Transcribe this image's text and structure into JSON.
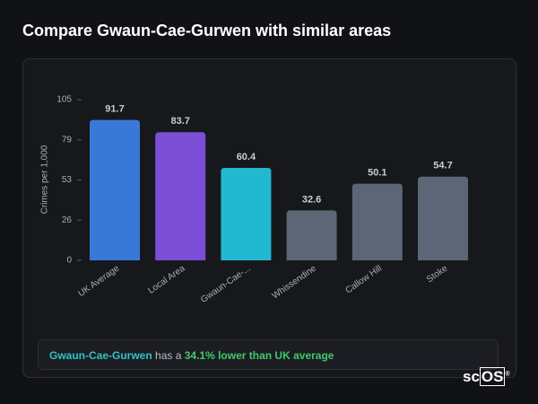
{
  "header": {
    "title": "Compare Gwaun-Cae-Gurwen with similar areas"
  },
  "chart_data": {
    "type": "bar",
    "y_label": "Crimes per 1,000",
    "categories": [
      "UK Average",
      "Local Area",
      "Gwaun-Cae-...",
      "Whissendine",
      "Callow Hill",
      "Stoke"
    ],
    "values": [
      91.7,
      83.7,
      60.4,
      32.6,
      50.1,
      54.7
    ],
    "colors": [
      "#3a78d8",
      "#7a4fd5",
      "#22b8d0",
      "#5c6677",
      "#5c6677",
      "#5c6677"
    ],
    "ylim": [
      0,
      105
    ],
    "yticks": [
      0,
      {
        "value": 26.25,
        "label": "26"
      },
      {
        "value": 52.5,
        "label": "53"
      },
      {
        "value": 78.75,
        "label": "79"
      },
      105
    ]
  },
  "footer": {
    "area": "Gwaun-Cae-Gurwen",
    "text": "has a",
    "comparison": "34.1% lower than UK average"
  },
  "logo": {
    "prefix": "sc",
    "boxed": "OS",
    "mark": "®"
  }
}
